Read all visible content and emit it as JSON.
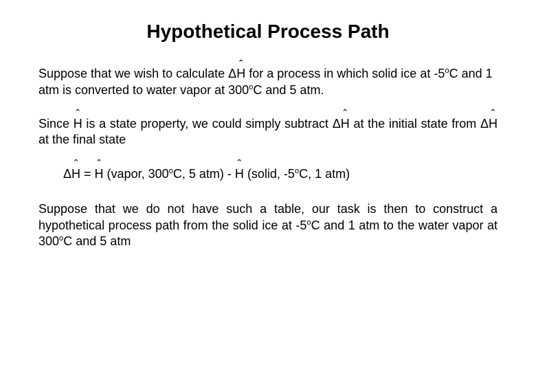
{
  "title": "Hypothetical Process Path",
  "p1_a": "Suppose that we wish to calculate ",
  "p1_dh": "H",
  "p1_b": " for a process in which solid ice at -5",
  "p1_deg1": "o",
  "p1_c": "C and 1 atm is converted to water vapor at 300",
  "p1_deg2": "o",
  "p1_d": "C and 5 atm.",
  "p2_a": "Since ",
  "p2_h": "H",
  "p2_b": " is a state property, we could simply subtract ",
  "p2_dh": "H",
  "p2_c": " at the initial state from ",
  "p2_dh2": "H",
  "p2_d": " at the final state",
  "eq_dh": "H",
  "eq_eq": " = ",
  "eq_h1": "H",
  "eq_v1": " (vapor, 300",
  "eq_deg1": "o",
  "eq_v2": "C, 5 atm) - ",
  "eq_h2": "H",
  "eq_s1": " (solid, -5",
  "eq_deg2": "o",
  "eq_s2": "C, 1 atm)",
  "p3_a": "Suppose that we do not have such a table, our task is then to construct a hypothetical process path from the solid ice at -5",
  "p3_deg1": "o",
  "p3_b": "C and 1 atm to the water vapor at 300",
  "p3_deg2": "o",
  "p3_c": "C and 5 atm",
  "delta": "Δ"
}
